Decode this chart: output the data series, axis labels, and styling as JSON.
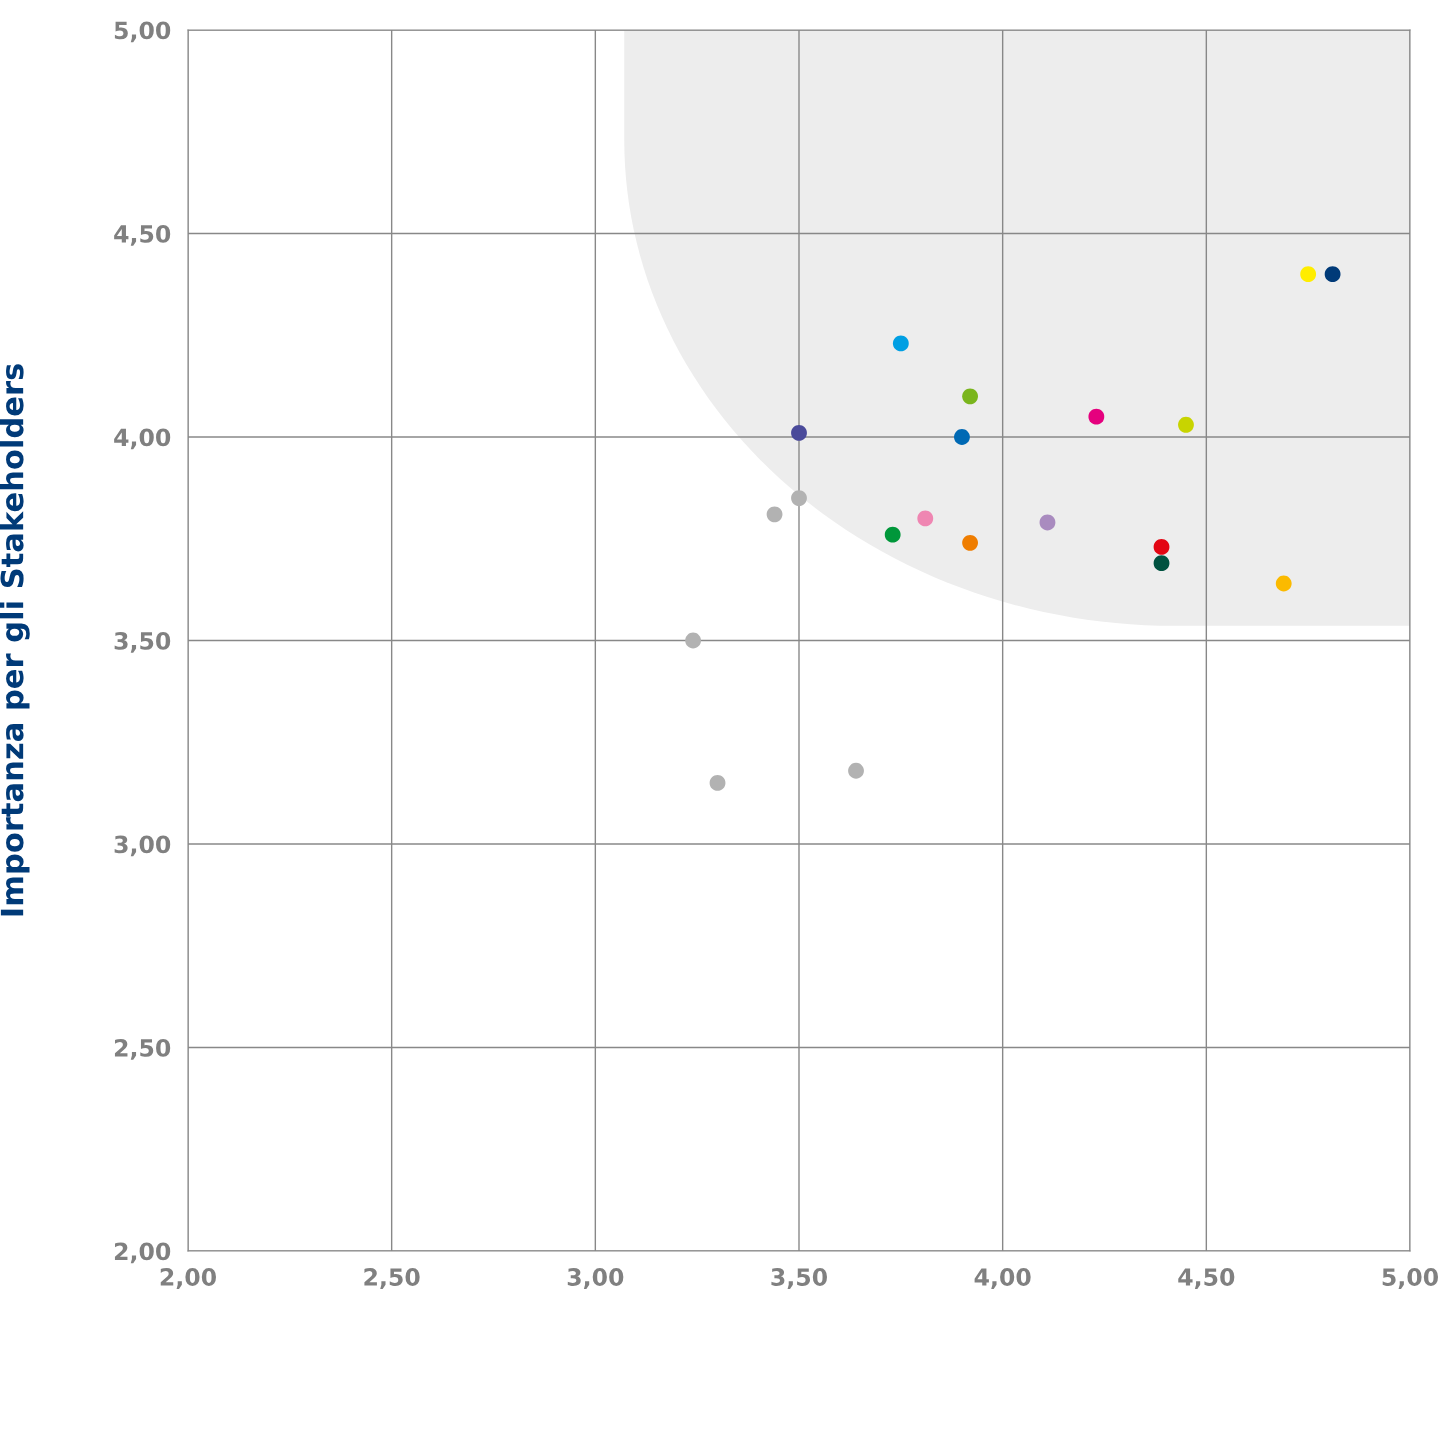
{
  "chart_data": {
    "type": "scatter",
    "ylabel": "Importanza per gli Stakeholders",
    "x": [
      4.75,
      4.81,
      3.75,
      3.92,
      4.23,
      4.45,
      3.5,
      3.9,
      3.5,
      3.44,
      3.81,
      4.11,
      3.73,
      3.92,
      4.39,
      4.39,
      4.69,
      3.24,
      3.64,
      3.3
    ],
    "values": [
      4.4,
      4.4,
      4.23,
      4.1,
      4.05,
      4.03,
      4.01,
      4.0,
      3.85,
      3.81,
      3.8,
      3.79,
      3.76,
      3.74,
      3.73,
      3.69,
      3.64,
      3.5,
      3.18,
      3.15
    ],
    "colors": [
      "#ffed00",
      "#003a78",
      "#009fe3",
      "#7ab51d",
      "#e5007e",
      "#c8d400",
      "#4a4a9a",
      "#0069b4",
      "#b2b2b2",
      "#b2b2b2",
      "#ef86b2",
      "#a98bbf",
      "#00973a",
      "#ef7d00",
      "#e30613",
      "#005240",
      "#fbba00",
      "#b2b2b2",
      "#b2b2b2",
      "#b2b2b2"
    ],
    "marker": "circle",
    "xlim": [
      2,
      5
    ],
    "ylim": [
      2,
      5
    ],
    "xticks": [
      {
        "value": 2,
        "label": "2,00"
      },
      {
        "value": 2.5,
        "label": "2,50"
      },
      {
        "value": 3,
        "label": "3,00"
      },
      {
        "value": 3.5,
        "label": "3,50"
      },
      {
        "value": 4,
        "label": "4,00"
      },
      {
        "value": 4.5,
        "label": "4,50"
      },
      {
        "value": 5,
        "label": "5,00"
      }
    ],
    "yticks": [
      {
        "value": 2,
        "label": "2,00"
      },
      {
        "value": 2.5,
        "label": "2,50"
      },
      {
        "value": 3,
        "label": "3,00"
      },
      {
        "value": 3.5,
        "label": "3,50"
      },
      {
        "value": 4,
        "label": "4,00"
      },
      {
        "value": 4.5,
        "label": "4,50"
      },
      {
        "value": 5,
        "label": "5,00"
      }
    ],
    "grid": true
  }
}
